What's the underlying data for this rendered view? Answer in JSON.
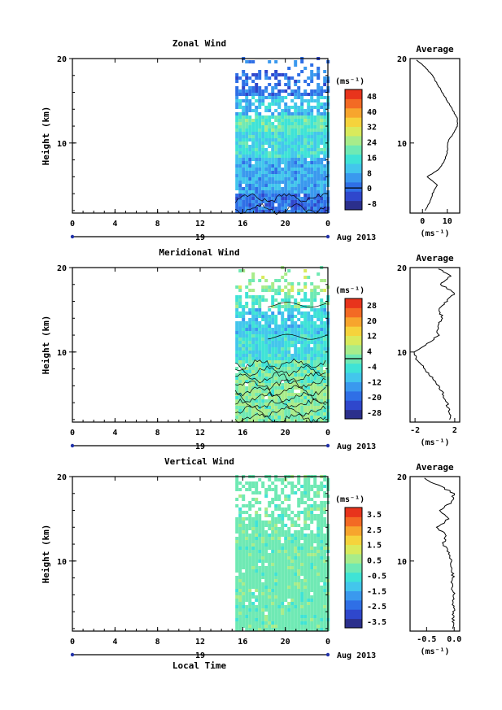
{
  "palette": [
    "#2b2f8c",
    "#2f47cc",
    "#2f6fe6",
    "#3a99ee",
    "#43c6ec",
    "#3fe3d6",
    "#6fe9b4",
    "#a8ec8a",
    "#d9ea5c",
    "#f5d33c",
    "#f7a52d",
    "#f36a24",
    "#e8341c"
  ],
  "panels": [
    {
      "title": "Zonal Wind",
      "ylabel": "Height (km)",
      "y_ticks": [
        "20",
        "10"
      ],
      "x_ticks": [
        "0",
        "4",
        "8",
        "12",
        "16",
        "20",
        "0"
      ],
      "date_mark": "19",
      "date_label": "Aug 2013",
      "cbar_unit": "(ms⁻¹)",
      "cbar_ticks": [
        "48",
        "40",
        "32",
        "24",
        "16",
        "8",
        "0",
        "-8"
      ],
      "cbar_zero_index": 6,
      "profile_title": "Average",
      "profile_y_ticks": [
        "20",
        "10"
      ],
      "profile_x_ticks": [
        "0",
        "10"
      ],
      "profile_unit": "(ms⁻¹)"
    },
    {
      "title": "Meridional Wind",
      "ylabel": "Height (km)",
      "y_ticks": [
        "20",
        "10"
      ],
      "x_ticks": [
        "0",
        "4",
        "8",
        "12",
        "16",
        "20",
        "0"
      ],
      "date_mark": "19",
      "date_label": "Aug 2013",
      "cbar_unit": "(ms⁻¹)",
      "cbar_ticks": [
        "28",
        "20",
        "12",
        "4",
        "-4",
        "-12",
        "-20",
        "-28"
      ],
      "cbar_zero_index": 3.5,
      "profile_title": "Average",
      "profile_y_ticks": [
        "20",
        "10"
      ],
      "profile_x_ticks": [
        "-2",
        "2"
      ],
      "profile_unit": "(ms⁻¹)"
    },
    {
      "title": "Vertical Wind",
      "ylabel": "Height (km)",
      "y_ticks": [
        "20",
        "10"
      ],
      "x_ticks": [
        "0",
        "4",
        "8",
        "12",
        "16",
        "20",
        "0"
      ],
      "date_mark": "19",
      "date_label": "Aug 2013",
      "cbar_unit": "(ms⁻¹)",
      "cbar_ticks": [
        "3.5",
        "2.5",
        "1.5",
        "0.5",
        "-0.5",
        "-1.5",
        "-2.5",
        "-3.5"
      ],
      "cbar_zero_index": -1,
      "profile_title": "Average",
      "profile_y_ticks": [
        "20",
        "10"
      ],
      "profile_x_ticks": [
        "-0.5",
        "0.0"
      ],
      "profile_unit": "(ms⁻¹)"
    }
  ],
  "xlabel": "Local Time",
  "chart_data": [
    {
      "type": "heatmap",
      "title": "Zonal Wind",
      "ylabel": "Height (km)",
      "xlabel": "Local Time",
      "x_range": [
        "00 LT 19 Aug 2013",
        "00 LT 20 Aug 2013"
      ],
      "ylim": [
        1.7,
        20
      ],
      "data_start_hour": 15.3,
      "colorbar": {
        "unit": "ms⁻¹",
        "levels": [
          -8,
          0,
          8,
          16,
          24,
          32,
          40,
          48
        ]
      },
      "height_bands_km": [
        {
          "from": 1.7,
          "to": 4,
          "value": 2
        },
        {
          "from": 4,
          "to": 8,
          "value": 8
        },
        {
          "from": 8,
          "to": 11,
          "value": 14
        },
        {
          "from": 11,
          "to": 13,
          "value": 18
        },
        {
          "from": 13,
          "to": 15.5,
          "value": 10
        },
        {
          "from": 15.5,
          "to": 20,
          "value": 2
        }
      ],
      "profile": {
        "title": "Average",
        "xlabel": "ms⁻¹",
        "xlim": [
          -5,
          15
        ],
        "height_km": [
          2,
          3,
          4,
          5,
          6,
          7,
          8,
          9,
          10,
          11,
          12,
          13,
          14,
          15,
          16,
          17,
          18,
          19,
          20
        ],
        "value": [
          1,
          3,
          4,
          6,
          2,
          7,
          9,
          10,
          10,
          12,
          14,
          14,
          12,
          10,
          8,
          6,
          4,
          1,
          -3
        ]
      }
    },
    {
      "type": "heatmap",
      "title": "Meridional Wind",
      "ylabel": "Height (km)",
      "xlabel": "Local Time",
      "x_range": [
        "00 LT 19 Aug 2013",
        "00 LT 20 Aug 2013"
      ],
      "ylim": [
        1.7,
        20
      ],
      "data_start_hour": 15.3,
      "colorbar": {
        "unit": "ms⁻¹",
        "levels": [
          -28,
          -20,
          -12,
          -4,
          4,
          12,
          20,
          28
        ]
      },
      "height_bands_km": [
        {
          "from": 1.7,
          "to": 6,
          "value": 2
        },
        {
          "from": 6,
          "to": 9,
          "value": 0
        },
        {
          "from": 9,
          "to": 12,
          "value": -6
        },
        {
          "from": 12,
          "to": 15,
          "value": -8
        },
        {
          "from": 15,
          "to": 17,
          "value": -2
        },
        {
          "from": 17,
          "to": 20,
          "value": 4
        }
      ],
      "profile": {
        "title": "Average",
        "xlabel": "ms⁻¹",
        "xlim": [
          -2.5,
          2.5
        ],
        "height_km": [
          2,
          3,
          4,
          5,
          6,
          7,
          8,
          9,
          10,
          11,
          12,
          13,
          14,
          15,
          16,
          17,
          18,
          19,
          20
        ],
        "value": [
          1.6,
          1.4,
          1.2,
          0.8,
          0.4,
          -0.3,
          -1.0,
          -1.8,
          -2.2,
          -0.8,
          0.4,
          0.2,
          0.8,
          0.4,
          1.2,
          2.0,
          0.6,
          1.6,
          0.2
        ]
      }
    },
    {
      "type": "heatmap",
      "title": "Vertical Wind",
      "ylabel": "Height (km)",
      "xlabel": "Local Time",
      "x_range": [
        "00 LT 19 Aug 2013",
        "00 LT 20 Aug 2013"
      ],
      "ylim": [
        1.7,
        20
      ],
      "data_start_hour": 15.3,
      "colorbar": {
        "unit": "ms⁻¹",
        "levels": [
          -3.5,
          -2.5,
          -1.5,
          -0.5,
          0.5,
          1.5,
          2.5,
          3.5
        ]
      },
      "height_bands_km": [
        {
          "from": 1.7,
          "to": 20,
          "value": 0
        }
      ],
      "profile": {
        "title": "Average",
        "xlabel": "ms⁻¹",
        "xlim": [
          -0.8,
          0.1
        ],
        "height_km": [
          2,
          3,
          4,
          5,
          6,
          7,
          8,
          9,
          10,
          11,
          12,
          13,
          14,
          15,
          16,
          17,
          18,
          19,
          20
        ],
        "value": [
          0.0,
          -0.02,
          0.0,
          -0.03,
          0.0,
          -0.05,
          -0.02,
          -0.04,
          -0.06,
          -0.1,
          -0.2,
          -0.15,
          -0.3,
          -0.1,
          -0.25,
          -0.05,
          0.0,
          -0.3,
          -0.6
        ]
      }
    }
  ]
}
